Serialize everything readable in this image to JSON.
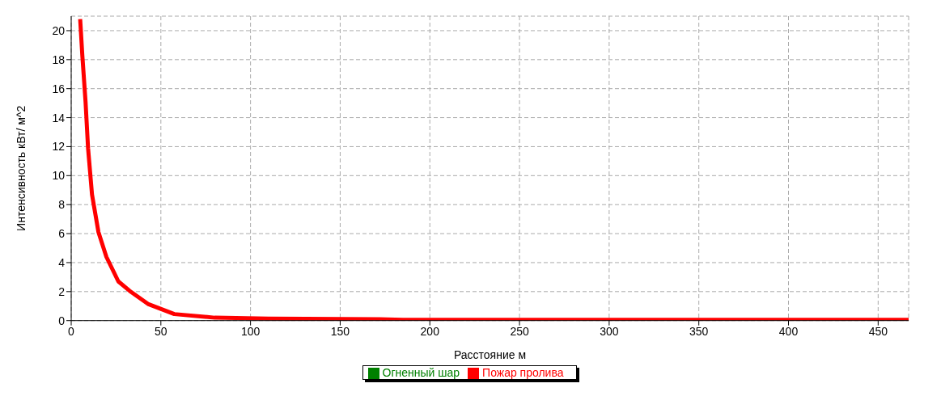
{
  "chart_data": {
    "type": "line",
    "xlabel": "Расстояние м",
    "ylabel": "Интенсивность  кВт/ м^2",
    "x": [
      5,
      6.2,
      8,
      9.4,
      11.6,
      15.2,
      19.6,
      26.3,
      32.6,
      42.8,
      57.5,
      80,
      110,
      172,
      185,
      467
    ],
    "series": [
      {
        "name": "Пожар пролива",
        "color": "#ff0000",
        "values": [
          20.8,
          18.3,
          15.1,
          11.9,
          8.7,
          6.1,
          4.4,
          2.7,
          2.05,
          1.15,
          0.45,
          0.2,
          0.13,
          0.1,
          0.05,
          0.05
        ]
      },
      {
        "name": "Огненный шар",
        "color": "#008000",
        "values": [
          null,
          null,
          null,
          null,
          null,
          null,
          null,
          null,
          null,
          null,
          null,
          null,
          null,
          null,
          null,
          null
        ]
      }
    ],
    "xlim": [
      0,
      467
    ],
    "xticks": [
      0,
      50,
      100,
      150,
      200,
      250,
      300,
      350,
      400,
      450
    ],
    "ylim": [
      0,
      21
    ],
    "yticks": [
      0,
      2,
      4,
      6,
      8,
      10,
      12,
      14,
      16,
      18,
      20
    ],
    "grid": true,
    "legend": "bottom",
    "marker": "none",
    "line_style": "solid"
  }
}
